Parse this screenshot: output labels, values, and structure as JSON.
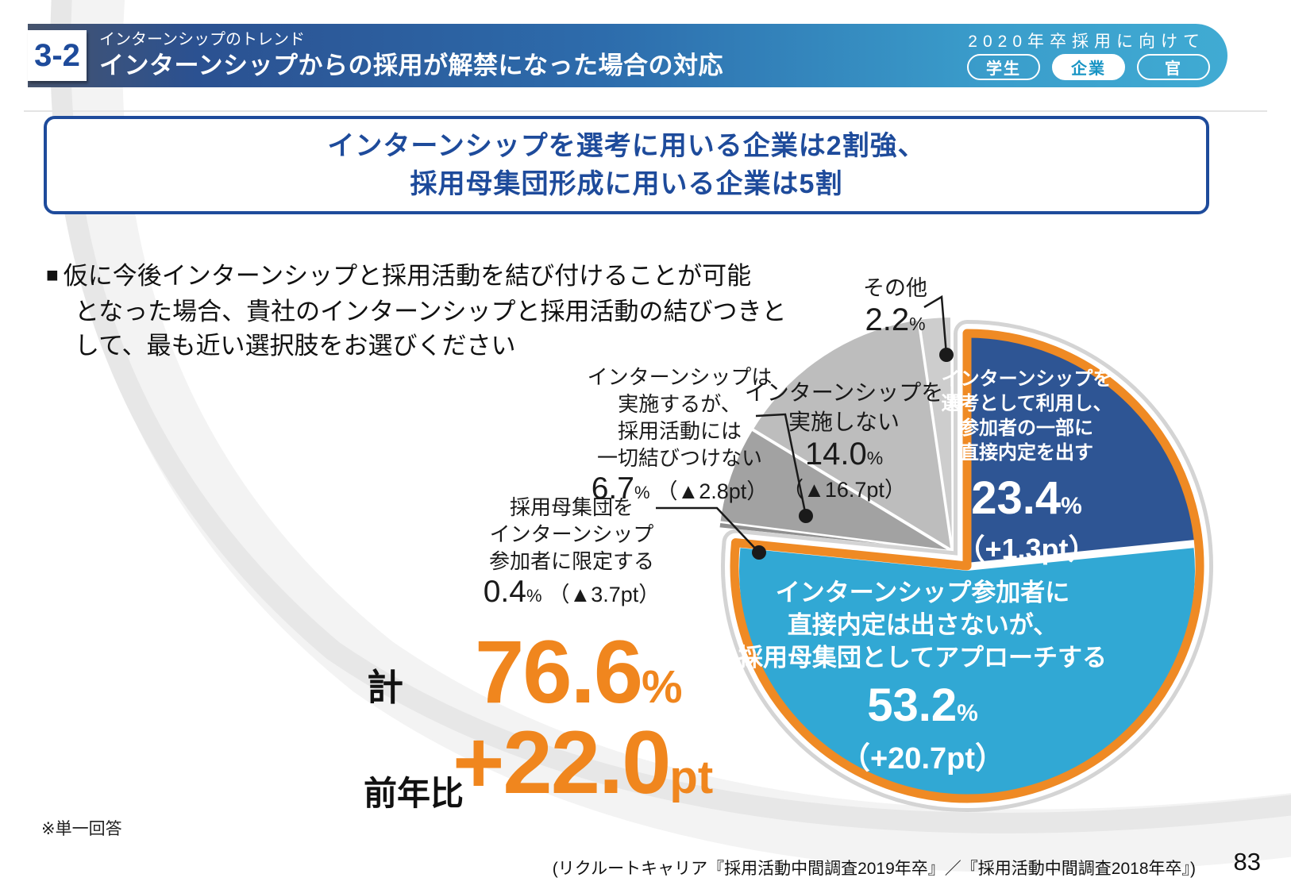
{
  "header": {
    "badge": "3-2",
    "kicker": "インターンシップのトレンド",
    "title": "インターンシップからの採用が解禁になった場合の対応",
    "audience": "2020年卒採用に向けて",
    "pills": [
      {
        "label": "学生",
        "active": false
      },
      {
        "label": "企業",
        "active": true
      },
      {
        "label": "官",
        "active": false
      }
    ]
  },
  "headline": {
    "lines": [
      "インターンシップを選考に用いる企業は2割強、",
      "採用母集団形成に用いる企業は5割"
    ]
  },
  "question": {
    "marker": "■",
    "lines": [
      "仮に今後インターンシップと採用活動を結び付けることが可能",
      "となった場合、貴社のインターンシップと採用活動の結びつきと",
      "して、最も近い選択肢をお選びください"
    ]
  },
  "chart_data": {
    "type": "pie",
    "unit": "%",
    "start_angle": "top",
    "direction": "clockwise",
    "segments": [
      {
        "label": "インターンシップを選考として利用し、参加者の一部に直接内定を出す",
        "label_lines": [
          "インターンシップを",
          "選考として利用し、",
          "参加者の一部に",
          "直接内定を出す"
        ],
        "value": 23.4,
        "value_display": "23.4",
        "change_display": "（+1.3pt）",
        "color": "#2E5594",
        "text_color": "#FFFFFF"
      },
      {
        "label": "インターンシップ参加者に直接内定は出さないが、採用母集団としてアプローチする",
        "label_lines": [
          "インターンシップ参加者に",
          "直接内定は出さないが、",
          "採用母集団としてアプローチする"
        ],
        "value": 53.2,
        "value_display": "53.2",
        "change_display": "（+20.7pt）",
        "color": "#31A8D4",
        "text_color": "#FFFFFF"
      },
      {
        "label": "採用母集団をインターンシップ参加者に限定する",
        "label_lines": [
          "採用母集団を",
          "インターンシップ",
          "参加者に限定する"
        ],
        "value": 0.4,
        "value_display": "0.4",
        "change_display": "（▲3.7pt）",
        "color": "#8F8F8F",
        "text_color": "#1A1A1A"
      },
      {
        "label": "インターンシップは実施するが、採用活動には一切結びつけない",
        "label_lines": [
          "インターンシップは",
          "実施するが、",
          "採用活動には",
          "一切結びつけない"
        ],
        "value": 6.7,
        "value_display": "6.7",
        "change_display": "（▲2.8pt）",
        "color": "#A2A2A2",
        "text_color": "#1A1A1A"
      },
      {
        "label": "インターンシップを実施しない",
        "label_lines": [
          "インターンシップを",
          "実施しない"
        ],
        "value": 14.0,
        "value_display": "14.0",
        "change_display": "（▲16.7pt）",
        "color": "#BDBDBD",
        "text_color": "#1A1A1A"
      },
      {
        "label": "その他",
        "label_lines": [
          "その他"
        ],
        "value": 2.2,
        "value_display": "2.2",
        "change_display": null,
        "color": "#CDCDCD",
        "text_color": "#1A1A1A"
      }
    ],
    "highlight": {
      "segment_indexes": [
        0,
        1
      ],
      "total_display": "76.6",
      "ring_color": "#EF8A24"
    }
  },
  "summary": {
    "total_label": "計",
    "total_value": "76.6",
    "total_unit": "%",
    "yoy_label": "前年比",
    "yoy_value": "+22.0",
    "yoy_unit": "pt",
    "accent_color": "#F0861E"
  },
  "footnote": "※単一回答",
  "source": "(リクルートキャリア『採用活動中間調査2019年卒』／『採用活動中間調査2018年卒』)",
  "page_number": "83"
}
